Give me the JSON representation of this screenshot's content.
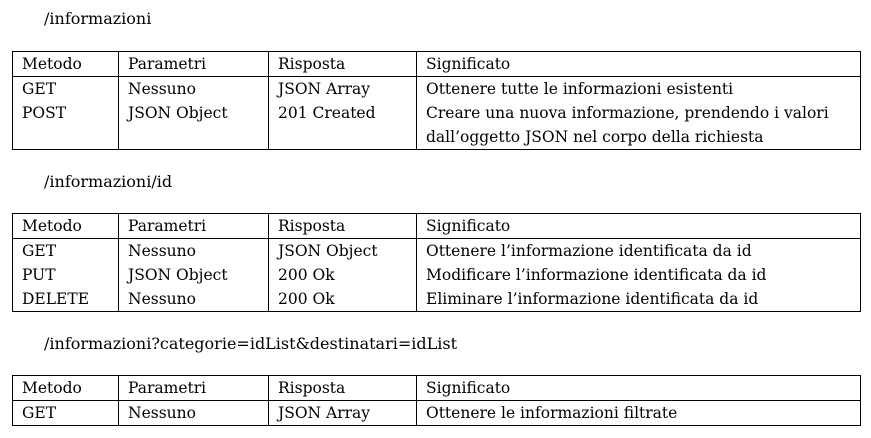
{
  "columns": [
    "Metodo",
    "Parametri",
    "Risposta",
    "Significato"
  ],
  "sections": [
    {
      "path": "/informazioni",
      "rows": [
        [
          "GET",
          "Nessuno",
          "JSON Array",
          "Ottenere tutte le informazioni esistenti"
        ],
        [
          "POST",
          "JSON Object",
          "201 Created",
          "Creare una nuova informazione, prendendo i valori dall’oggetto JSON nel corpo della richiesta"
        ]
      ]
    },
    {
      "path": "/informazioni/id",
      "rows": [
        [
          "GET",
          "Nessuno",
          "JSON Object",
          "Ottenere l’informazione identificata da id"
        ],
        [
          "PUT",
          "JSON Object",
          "200 Ok",
          "Modificare l’informazione identificata da id"
        ],
        [
          "DELETE",
          "Nessuno",
          "200 Ok",
          "Eliminare l’informazione identificata da id"
        ]
      ]
    },
    {
      "path": "/informazioni?categorie=idList&destinatari=idList",
      "rows": [
        [
          "GET",
          "Nessuno",
          "JSON Array",
          "Ottenere le informazioni filtrate"
        ]
      ]
    }
  ]
}
